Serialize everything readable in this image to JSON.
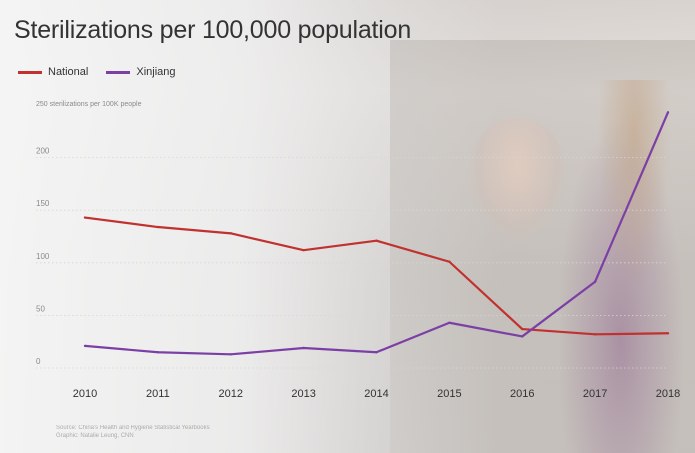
{
  "chart_data": {
    "type": "line",
    "title": "Sterilizations per 100,000 population",
    "ylabel": "250 sterilizations per 100K people",
    "xlabel": "",
    "categories": [
      "2010",
      "2011",
      "2012",
      "2013",
      "2014",
      "2015",
      "2016",
      "2017",
      "2018"
    ],
    "yticks": [
      0,
      50,
      100,
      150,
      200
    ],
    "ylim": [
      0,
      250
    ],
    "grid": true,
    "legend_position": "top-left",
    "series": [
      {
        "name": "National",
        "color": "#c0312f",
        "values": [
          143,
          134,
          128,
          112,
          121,
          101,
          37,
          32,
          33
        ]
      },
      {
        "name": "Xinjiang",
        "color": "#7b3fa6",
        "values": [
          21,
          15,
          13,
          19,
          15,
          43,
          30,
          82,
          243
        ]
      }
    ],
    "source_lines": [
      "Source: China's Health and Hygiene Statistical Yearbooks",
      "Graphic: Natalie Leung, CNN"
    ]
  }
}
